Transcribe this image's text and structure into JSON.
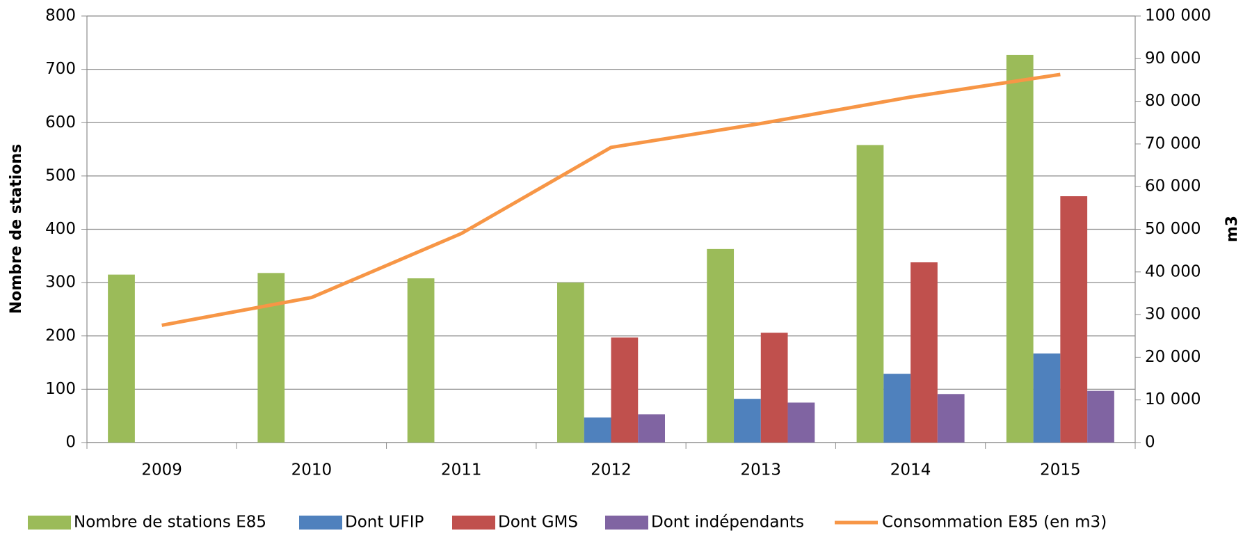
{
  "chart_data": {
    "type": "bar",
    "y_label": "Nombre de stations",
    "y2_label": "m3",
    "categories": [
      "2009",
      "2010",
      "2011",
      "2012",
      "2013",
      "2014",
      "2015"
    ],
    "series": [
      {
        "name": "Nombre de stations E85",
        "color": "#9bbb59",
        "values": [
          315,
          318,
          308,
          300,
          363,
          558,
          727
        ]
      },
      {
        "name": "Dont UFIP",
        "color": "#4f81bd",
        "values": [
          null,
          null,
          null,
          47,
          82,
          129,
          167
        ]
      },
      {
        "name": "Dont GMS",
        "color": "#c0504d",
        "values": [
          null,
          null,
          null,
          197,
          206,
          338,
          462
        ]
      },
      {
        "name": "Dont indépendants",
        "color": "#8064a2",
        "values": [
          null,
          null,
          null,
          53,
          75,
          91,
          97
        ]
      },
      {
        "name": "Consommation E85 (en m3)",
        "color": "#f79646",
        "type": "line",
        "axis": "y2",
        "values": [
          27500,
          34000,
          49000,
          69200,
          74800,
          81000,
          86300
        ]
      }
    ],
    "ylim": [
      0,
      800
    ],
    "yticks": [
      0,
      100,
      200,
      300,
      400,
      500,
      600,
      700,
      800
    ],
    "y2lim": [
      0,
      100000
    ],
    "y2ticks": [
      0,
      {
        "value": 10000,
        "label": "10 000"
      },
      {
        "value": 20000,
        "label": "20 000"
      },
      {
        "value": 30000,
        "label": "30 000"
      },
      {
        "value": 40000,
        "label": "40 000"
      },
      {
        "value": 50000,
        "label": "50 000"
      },
      {
        "value": 60000,
        "label": "60 000"
      },
      {
        "value": 70000,
        "label": "70 000"
      },
      {
        "value": 80000,
        "label": "80 000"
      },
      {
        "value": 90000,
        "label": "90 000"
      },
      {
        "value": 100000,
        "label": "100 000"
      }
    ],
    "grid": true,
    "legend": "bottom"
  }
}
